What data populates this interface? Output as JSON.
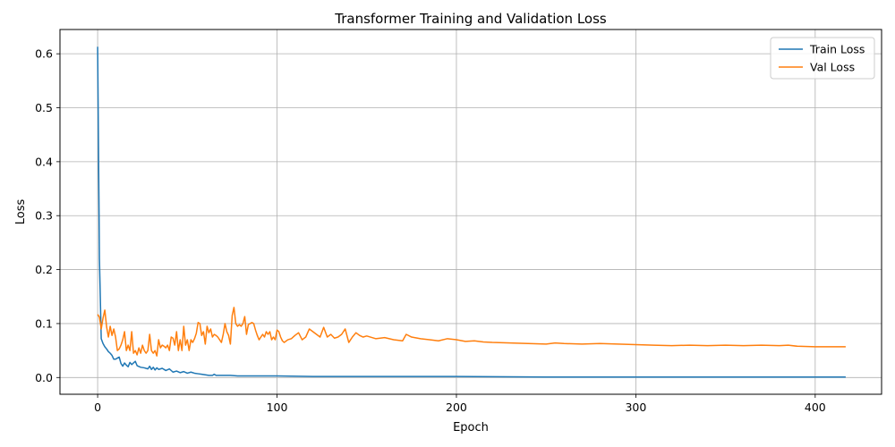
{
  "chart_data": {
    "type": "line",
    "title": "Transformer Training and Validation Loss",
    "xlabel": "Epoch",
    "ylabel": "Loss",
    "xlim": [
      -21,
      437
    ],
    "ylim": [
      -0.031,
      0.645
    ],
    "xticks": [
      0,
      100,
      200,
      300,
      400
    ],
    "yticks": [
      0.0,
      0.1,
      0.2,
      0.3,
      0.4,
      0.5,
      0.6
    ],
    "grid": true,
    "legend_position": "top-right",
    "series": [
      {
        "name": "Train Loss",
        "color": "#1f77b4",
        "points": [
          [
            0,
            0.613
          ],
          [
            1,
            0.22
          ],
          [
            2,
            0.072
          ],
          [
            3,
            0.063
          ],
          [
            4,
            0.057
          ],
          [
            5,
            0.053
          ],
          [
            6,
            0.048
          ],
          [
            7,
            0.045
          ],
          [
            8,
            0.041
          ],
          [
            9,
            0.034
          ],
          [
            10,
            0.034
          ],
          [
            11,
            0.036
          ],
          [
            12,
            0.038
          ],
          [
            13,
            0.026
          ],
          [
            14,
            0.021
          ],
          [
            15,
            0.027
          ],
          [
            16,
            0.023
          ],
          [
            17,
            0.02
          ],
          [
            18,
            0.028
          ],
          [
            19,
            0.024
          ],
          [
            20,
            0.027
          ],
          [
            21,
            0.03
          ],
          [
            22,
            0.022
          ],
          [
            24,
            0.019
          ],
          [
            26,
            0.018
          ],
          [
            28,
            0.016
          ],
          [
            29,
            0.021
          ],
          [
            30,
            0.015
          ],
          [
            31,
            0.019
          ],
          [
            32,
            0.014
          ],
          [
            33,
            0.018
          ],
          [
            34,
            0.015
          ],
          [
            36,
            0.017
          ],
          [
            38,
            0.013
          ],
          [
            40,
            0.016
          ],
          [
            42,
            0.01
          ],
          [
            44,
            0.012
          ],
          [
            46,
            0.009
          ],
          [
            48,
            0.011
          ],
          [
            50,
            0.008
          ],
          [
            52,
            0.01
          ],
          [
            54,
            0.008
          ],
          [
            56,
            0.007
          ],
          [
            58,
            0.006
          ],
          [
            60,
            0.005
          ],
          [
            62,
            0.004
          ],
          [
            64,
            0.004
          ],
          [
            65,
            0.006
          ],
          [
            66,
            0.004
          ],
          [
            70,
            0.004
          ],
          [
            74,
            0.004
          ],
          [
            78,
            0.003
          ],
          [
            85,
            0.003
          ],
          [
            95,
            0.003
          ],
          [
            100,
            0.003
          ],
          [
            120,
            0.002
          ],
          [
            150,
            0.002
          ],
          [
            175,
            0.002
          ],
          [
            200,
            0.002
          ],
          [
            250,
            0.001
          ],
          [
            300,
            0.001
          ],
          [
            350,
            0.001
          ],
          [
            400,
            0.001
          ],
          [
            417,
            0.001
          ]
        ]
      },
      {
        "name": "Val Loss",
        "color": "#ff7f0e",
        "points": [
          [
            0,
            0.117
          ],
          [
            1,
            0.112
          ],
          [
            2,
            0.09
          ],
          [
            3,
            0.11
          ],
          [
            4,
            0.125
          ],
          [
            5,
            0.094
          ],
          [
            6,
            0.075
          ],
          [
            7,
            0.095
          ],
          [
            8,
            0.078
          ],
          [
            9,
            0.09
          ],
          [
            10,
            0.075
          ],
          [
            11,
            0.05
          ],
          [
            12,
            0.053
          ],
          [
            13,
            0.06
          ],
          [
            14,
            0.07
          ],
          [
            15,
            0.085
          ],
          [
            16,
            0.05
          ],
          [
            17,
            0.06
          ],
          [
            18,
            0.05
          ],
          [
            19,
            0.085
          ],
          [
            20,
            0.045
          ],
          [
            21,
            0.05
          ],
          [
            22,
            0.042
          ],
          [
            23,
            0.055
          ],
          [
            24,
            0.045
          ],
          [
            25,
            0.06
          ],
          [
            26,
            0.05
          ],
          [
            27,
            0.045
          ],
          [
            28,
            0.05
          ],
          [
            29,
            0.08
          ],
          [
            30,
            0.05
          ],
          [
            31,
            0.045
          ],
          [
            32,
            0.05
          ],
          [
            33,
            0.04
          ],
          [
            34,
            0.07
          ],
          [
            35,
            0.055
          ],
          [
            36,
            0.06
          ],
          [
            37,
            0.058
          ],
          [
            38,
            0.055
          ],
          [
            39,
            0.06
          ],
          [
            40,
            0.05
          ],
          [
            41,
            0.075
          ],
          [
            42,
            0.073
          ],
          [
            43,
            0.06
          ],
          [
            44,
            0.085
          ],
          [
            45,
            0.05
          ],
          [
            46,
            0.07
          ],
          [
            47,
            0.05
          ],
          [
            48,
            0.095
          ],
          [
            49,
            0.06
          ],
          [
            50,
            0.07
          ],
          [
            51,
            0.05
          ],
          [
            52,
            0.07
          ],
          [
            53,
            0.065
          ],
          [
            54,
            0.072
          ],
          [
            55,
            0.082
          ],
          [
            56,
            0.102
          ],
          [
            57,
            0.1
          ],
          [
            58,
            0.078
          ],
          [
            59,
            0.085
          ],
          [
            60,
            0.062
          ],
          [
            61,
            0.095
          ],
          [
            62,
            0.083
          ],
          [
            63,
            0.09
          ],
          [
            64,
            0.075
          ],
          [
            65,
            0.08
          ],
          [
            66,
            0.078
          ],
          [
            67,
            0.075
          ],
          [
            68,
            0.07
          ],
          [
            69,
            0.065
          ],
          [
            70,
            0.08
          ],
          [
            71,
            0.1
          ],
          [
            72,
            0.085
          ],
          [
            73,
            0.078
          ],
          [
            74,
            0.062
          ],
          [
            75,
            0.115
          ],
          [
            76,
            0.13
          ],
          [
            77,
            0.1
          ],
          [
            78,
            0.095
          ],
          [
            79,
            0.098
          ],
          [
            80,
            0.095
          ],
          [
            81,
            0.1
          ],
          [
            82,
            0.113
          ],
          [
            83,
            0.08
          ],
          [
            84,
            0.098
          ],
          [
            85,
            0.1
          ],
          [
            86,
            0.102
          ],
          [
            87,
            0.1
          ],
          [
            88,
            0.088
          ],
          [
            89,
            0.078
          ],
          [
            90,
            0.07
          ],
          [
            91,
            0.075
          ],
          [
            92,
            0.08
          ],
          [
            93,
            0.075
          ],
          [
            94,
            0.085
          ],
          [
            95,
            0.08
          ],
          [
            96,
            0.085
          ],
          [
            97,
            0.07
          ],
          [
            98,
            0.075
          ],
          [
            99,
            0.07
          ],
          [
            100,
            0.088
          ],
          [
            101,
            0.085
          ],
          [
            102,
            0.075
          ],
          [
            103,
            0.068
          ],
          [
            104,
            0.065
          ],
          [
            106,
            0.07
          ],
          [
            108,
            0.072
          ],
          [
            110,
            0.078
          ],
          [
            112,
            0.083
          ],
          [
            114,
            0.07
          ],
          [
            116,
            0.075
          ],
          [
            118,
            0.09
          ],
          [
            120,
            0.085
          ],
          [
            122,
            0.08
          ],
          [
            124,
            0.075
          ],
          [
            126,
            0.093
          ],
          [
            128,
            0.075
          ],
          [
            130,
            0.08
          ],
          [
            132,
            0.073
          ],
          [
            134,
            0.075
          ],
          [
            136,
            0.08
          ],
          [
            138,
            0.09
          ],
          [
            140,
            0.065
          ],
          [
            142,
            0.075
          ],
          [
            144,
            0.083
          ],
          [
            146,
            0.078
          ],
          [
            148,
            0.075
          ],
          [
            150,
            0.077
          ],
          [
            155,
            0.072
          ],
          [
            160,
            0.074
          ],
          [
            165,
            0.07
          ],
          [
            170,
            0.068
          ],
          [
            172,
            0.08
          ],
          [
            175,
            0.075
          ],
          [
            180,
            0.072
          ],
          [
            185,
            0.07
          ],
          [
            190,
            0.068
          ],
          [
            195,
            0.072
          ],
          [
            200,
            0.07
          ],
          [
            205,
            0.067
          ],
          [
            210,
            0.068
          ],
          [
            215,
            0.066
          ],
          [
            220,
            0.065
          ],
          [
            230,
            0.064
          ],
          [
            240,
            0.063
          ],
          [
            250,
            0.062
          ],
          [
            255,
            0.064
          ],
          [
            260,
            0.063
          ],
          [
            270,
            0.062
          ],
          [
            280,
            0.063
          ],
          [
            290,
            0.062
          ],
          [
            300,
            0.061
          ],
          [
            310,
            0.06
          ],
          [
            320,
            0.059
          ],
          [
            330,
            0.06
          ],
          [
            340,
            0.059
          ],
          [
            350,
            0.06
          ],
          [
            360,
            0.059
          ],
          [
            370,
            0.06
          ],
          [
            380,
            0.059
          ],
          [
            385,
            0.06
          ],
          [
            390,
            0.058
          ],
          [
            400,
            0.057
          ],
          [
            410,
            0.057
          ],
          [
            417,
            0.057
          ]
        ]
      }
    ]
  }
}
